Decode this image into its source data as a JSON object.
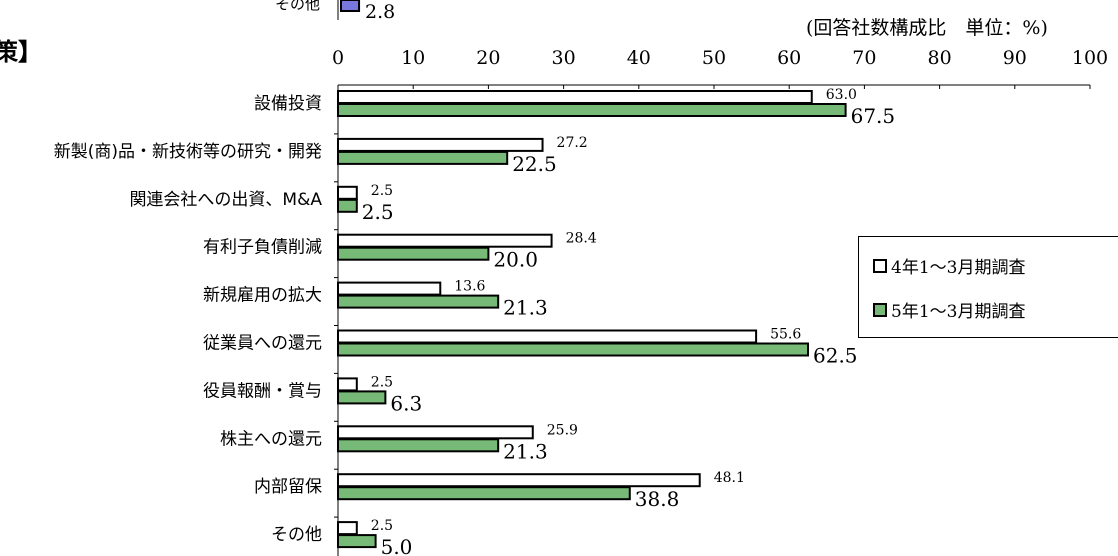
{
  "chart_data": {
    "type": "bar",
    "orientation": "horizontal",
    "title": "",
    "unit_note": "(回答社数構成比　単位：%)",
    "categories": [
      "設備投資",
      "新製(商)品・新技術等の研究・開発",
      "関連会社への出資、M&A",
      "有利子負債削減",
      "新規雇用の拡大",
      "従業員への還元",
      "役員報酬・賞与",
      "株主への還元",
      "内部留保",
      "その他"
    ],
    "series": [
      {
        "name": "4年1～3月期調査",
        "color": "#ffffff",
        "values": [
          63.0,
          27.2,
          2.5,
          28.4,
          13.6,
          55.6,
          2.5,
          25.9,
          48.1,
          2.5
        ],
        "labels": [
          "63.0",
          "27.2",
          "2.5",
          "28.4",
          "13.6",
          "55.6",
          "2.5",
          "25.9",
          "48.1",
          "2.5"
        ]
      },
      {
        "name": "5年1～3月期調査",
        "color": "#77b977",
        "values": [
          67.5,
          22.5,
          2.5,
          20.0,
          21.3,
          62.5,
          6.3,
          21.3,
          38.8,
          5.0
        ],
        "labels": [
          "67.5",
          "22.5",
          "2.5",
          "20.0",
          "21.3",
          "62.5",
          "6.3",
          "21.3",
          "38.8",
          "5.0"
        ]
      }
    ],
    "xlim": [
      0,
      100
    ],
    "xticks": [
      "0",
      "10",
      "20",
      "30",
      "40",
      "50",
      "60",
      "70",
      "80",
      "90",
      "100"
    ],
    "legend_position": "right",
    "grid": false
  },
  "top_fragment": {
    "category": "その他",
    "label": "2.8",
    "color": "#7777dd"
  },
  "left_fragment": "策】"
}
